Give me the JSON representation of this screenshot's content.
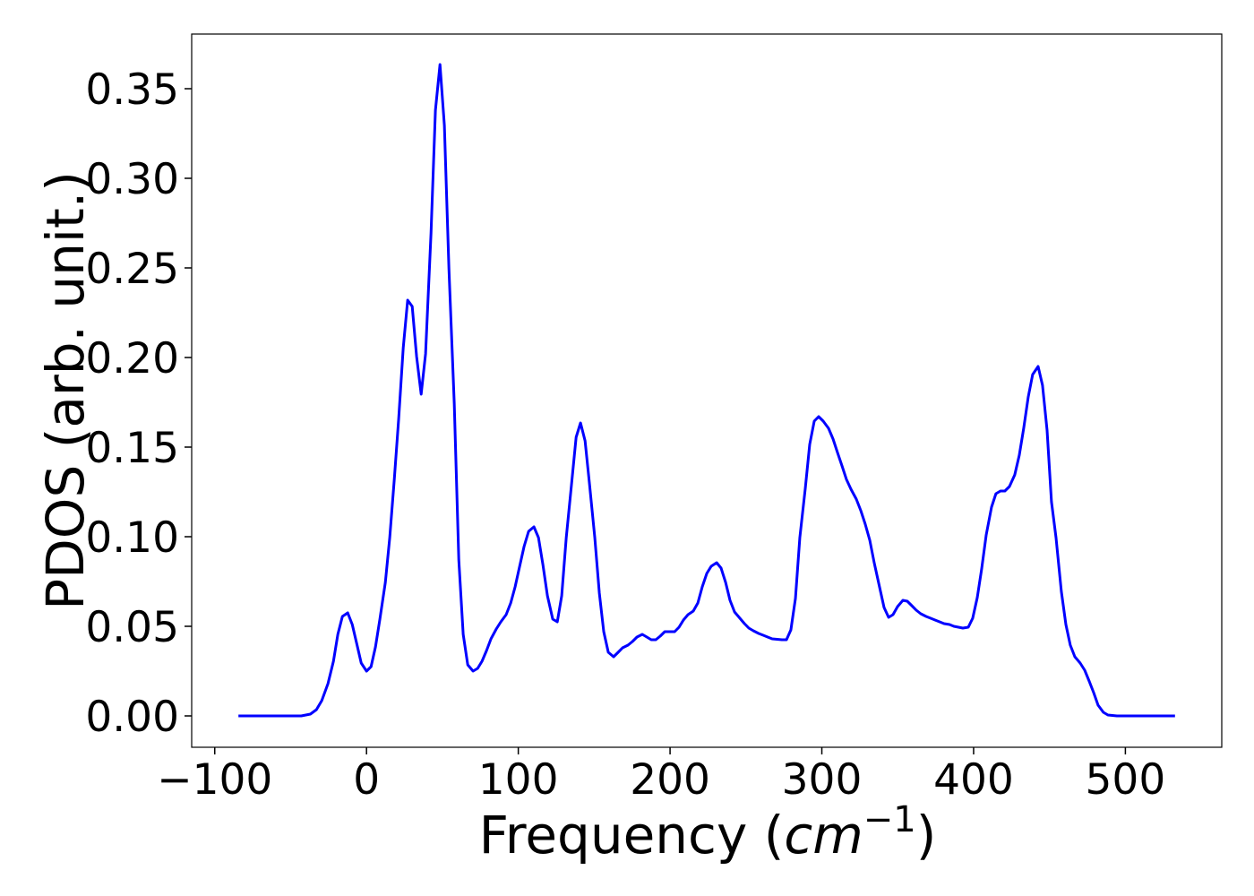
{
  "chart_data": {
    "type": "line",
    "x_label": [
      "Frequency (",
      "cm",
      "−1",
      ")"
    ],
    "y_label": "PDOS (arb. unit.)",
    "xlim": [
      -115.2,
      563.5
    ],
    "ylim": [
      -0.0175,
      0.3805
    ],
    "xticks": [
      {
        "value": -100,
        "label": "−100"
      },
      0,
      100,
      200,
      300,
      400,
      500
    ],
    "yticks": [
      {
        "value": 0,
        "label": "0.00"
      },
      {
        "value": 0.05,
        "label": "0.05"
      },
      {
        "value": 0.1,
        "label": "0.10"
      },
      {
        "value": 0.15,
        "label": "0.15"
      },
      {
        "value": 0.2,
        "label": "0.20"
      },
      {
        "value": 0.25,
        "label": "0.25"
      },
      {
        "value": 0.3,
        "label": "0.30"
      },
      {
        "value": 0.35,
        "label": "0.35"
      }
    ],
    "grid": false,
    "x": [
      -84.4,
      -43,
      -37,
      -33,
      -29.5,
      -25.4,
      -21.8,
      -18.9,
      -15.9,
      -12.4,
      -9.4,
      -6.5,
      -3.5,
      0,
      3,
      5.9,
      8.8,
      12.4,
      15.3,
      18.3,
      21.2,
      24.2,
      27.1,
      30.1,
      33,
      36,
      38.9,
      42.5,
      45.4,
      48.4,
      51.3,
      54.3,
      57.8,
      60.8,
      63.7,
      66.7,
      70.2,
      73.2,
      76.1,
      79.1,
      82,
      85.5,
      88.5,
      92,
      95,
      97.9,
      100.9,
      103.8,
      106.8,
      110.3,
      113.3,
      116.2,
      119.2,
      122.7,
      125.7,
      128.6,
      131.6,
      135.1,
      138.1,
      141,
      144,
      146.9,
      150.4,
      153.4,
      156.3,
      159.3,
      162.8,
      165.8,
      168.7,
      172.3,
      175.2,
      178.2,
      181.7,
      184.7,
      187.6,
      190.6,
      193.5,
      196.5,
      200,
      203,
      205.9,
      208.8,
      211.8,
      215.3,
      218.3,
      221.2,
      224.2,
      227.1,
      230.7,
      233.6,
      236.6,
      239.5,
      242.5,
      246,
      249,
      251.9,
      254.9,
      258.4,
      261.4,
      264.3,
      267.3,
      273.7,
      276.7,
      279.6,
      282.6,
      285.5,
      289.1,
      292,
      295,
      297.9,
      300.9,
      304.4,
      307.4,
      310.3,
      313.3,
      316.2,
      319.2,
      322.7,
      325.7,
      328.6,
      331.6,
      334.5,
      338,
      341,
      344,
      346.9,
      349.9,
      353.4,
      356.3,
      359.3,
      362.2,
      365.2,
      368.7,
      371.7,
      374.6,
      377.6,
      380.5,
      384.1,
      387,
      390,
      392.9,
      396.5,
      399.4,
      402.4,
      405.3,
      408.3,
      411.8,
      414.7,
      417.7,
      420.6,
      423.6,
      427.1,
      430.1,
      433,
      436,
      438.9,
      442.5,
      445.4,
      448.4,
      451.3,
      454.3,
      457.8,
      460.8,
      463.7,
      466.7,
      470.2,
      473.2,
      476.1,
      479.1,
      482,
      485.5,
      488.5,
      494.4,
      532.7
    ],
    "series": [
      {
        "color": "#0000ff",
        "values": [
          0,
          0,
          0.001,
          0.0035,
          0.0085,
          0.018,
          0.0305,
          0.0455,
          0.0555,
          0.0575,
          0.051,
          0.0405,
          0.0295,
          0.025,
          0.0275,
          0.0385,
          0.054,
          0.0745,
          0.0995,
          0.132,
          0.166,
          0.2055,
          0.232,
          0.2285,
          0.2005,
          0.1795,
          0.202,
          0.2695,
          0.338,
          0.3635,
          0.3295,
          0.2495,
          0.1745,
          0.087,
          0.0455,
          0.0285,
          0.025,
          0.0265,
          0.0305,
          0.0365,
          0.043,
          0.0485,
          0.0525,
          0.0565,
          0.063,
          0.072,
          0.0835,
          0.0945,
          0.103,
          0.1055,
          0.0995,
          0.0845,
          0.067,
          0.054,
          0.0525,
          0.067,
          0.0995,
          0.1295,
          0.1555,
          0.1635,
          0.1535,
          0.1295,
          0.0995,
          0.0685,
          0.047,
          0.0355,
          0.033,
          0.0355,
          0.038,
          0.0395,
          0.0415,
          0.044,
          0.0455,
          0.044,
          0.0425,
          0.0425,
          0.0445,
          0.047,
          0.047,
          0.047,
          0.0495,
          0.0535,
          0.0565,
          0.0585,
          0.063,
          0.072,
          0.0795,
          0.0835,
          0.0855,
          0.0825,
          0.0745,
          0.0645,
          0.058,
          0.0545,
          0.0515,
          0.049,
          0.0475,
          0.046,
          0.045,
          0.044,
          0.043,
          0.0425,
          0.0425,
          0.048,
          0.0655,
          0.0995,
          0.127,
          0.1515,
          0.1645,
          0.167,
          0.1645,
          0.1605,
          0.1545,
          0.147,
          0.1395,
          0.132,
          0.1265,
          0.121,
          0.1145,
          0.107,
          0.098,
          0.0855,
          0.072,
          0.0605,
          0.055,
          0.0565,
          0.061,
          0.0645,
          0.064,
          0.0615,
          0.059,
          0.057,
          0.0555,
          0.0545,
          0.0535,
          0.0525,
          0.0515,
          0.051,
          0.05,
          0.0495,
          0.049,
          0.0495,
          0.0545,
          0.066,
          0.082,
          0.101,
          0.1165,
          0.124,
          0.1255,
          0.1255,
          0.128,
          0.1345,
          0.1455,
          0.1605,
          0.178,
          0.1905,
          0.195,
          0.1845,
          0.1595,
          0.1195,
          0.0995,
          0.0695,
          0.051,
          0.0395,
          0.033,
          0.0295,
          0.0255,
          0.0195,
          0.013,
          0.006,
          0.002,
          0.0005,
          0,
          0
        ]
      }
    ]
  }
}
